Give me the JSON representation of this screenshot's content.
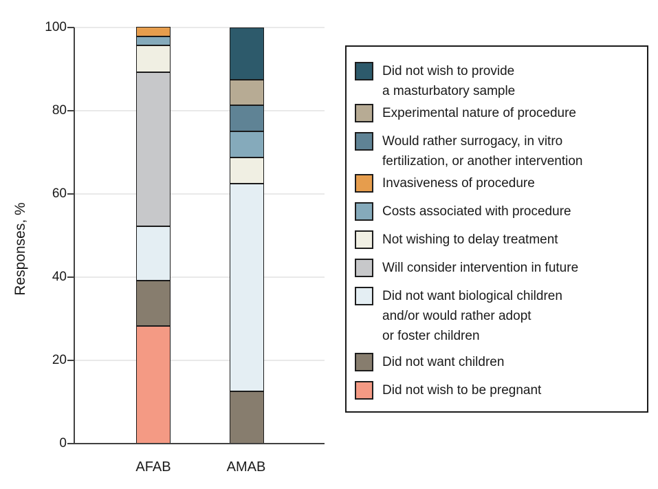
{
  "figure": {
    "background": "#ffffff",
    "axis_color": "#404040",
    "gridline_color": "#e9e9e9",
    "segment_border_color": "#1a1a1a"
  },
  "y_axis": {
    "label": "Responses, %",
    "ticks": [
      0,
      20,
      40,
      60,
      80,
      100
    ],
    "min": 0,
    "max": 100
  },
  "x_axis": {
    "categories": [
      "AFAB",
      "AMAB"
    ]
  },
  "chart_data": {
    "type": "bar",
    "stacked": true,
    "categories": [
      "AFAB",
      "AMAB"
    ],
    "series": [
      {
        "key": "pregnant",
        "name": "Did not wish to be pregnant",
        "color": "#F49A84",
        "values": [
          28.3,
          0
        ]
      },
      {
        "key": "no-children",
        "name": "Did not want children",
        "color": "#877D6E",
        "values": [
          10.9,
          12.5
        ]
      },
      {
        "key": "no-biological-children",
        "name": "Did not want biological children and/or would rather adopt or foster children",
        "color": "#E4EEF3",
        "values": [
          13.0,
          50.0
        ]
      },
      {
        "key": "future-intervention",
        "name": "Will consider intervention in future",
        "color": "#C7C8CA",
        "values": [
          37.0,
          0
        ]
      },
      {
        "key": "delay-treatment",
        "name": "Not wishing to delay treatment",
        "color": "#F0EFE3",
        "values": [
          6.5,
          6.25
        ]
      },
      {
        "key": "costs",
        "name": "Costs associated with procedure",
        "color": "#85AABB",
        "values": [
          2.2,
          6.25
        ]
      },
      {
        "key": "invasiveness",
        "name": "Invasiveness of procedure",
        "color": "#E69D4D",
        "values": [
          2.2,
          0
        ]
      },
      {
        "key": "surrogacy",
        "name": "Would rather surrogacy, in vitro fertilization, or another intervention",
        "color": "#5F8395",
        "values": [
          0,
          6.25
        ]
      },
      {
        "key": "experimental",
        "name": "Experimental nature of procedure",
        "color": "#B7AB94",
        "values": [
          0,
          6.25
        ]
      },
      {
        "key": "masturbatory-sample",
        "name": "Did not wish to provide a masturbatory sample",
        "color": "#2D5A6B",
        "values": [
          0,
          12.5
        ]
      }
    ],
    "title": "",
    "xlabel": "",
    "ylabel": "Responses, %",
    "ylim": [
      0,
      100
    ],
    "grid": true,
    "legend_position": "right"
  },
  "legend": {
    "items": [
      {
        "key": "masturbatory-sample",
        "color": "#2D5A6B",
        "lines": [
          "Did not wish to provide",
          "a masturbatory sample"
        ]
      },
      {
        "key": "experimental",
        "color": "#B7AB94",
        "lines": [
          "Experimental nature of procedure"
        ]
      },
      {
        "key": "surrogacy",
        "color": "#5F8395",
        "lines": [
          "Would rather surrogacy, in vitro",
          "fertilization, or another intervention"
        ]
      },
      {
        "key": "invasiveness",
        "color": "#E69D4D",
        "lines": [
          "Invasiveness of procedure"
        ]
      },
      {
        "key": "costs",
        "color": "#85AABB",
        "lines": [
          "Costs associated with procedure"
        ]
      },
      {
        "key": "delay-treatment",
        "color": "#F0EFE3",
        "lines": [
          "Not wishing to delay treatment"
        ]
      },
      {
        "key": "future-intervention",
        "color": "#C7C8CA",
        "lines": [
          "Will consider intervention in future"
        ]
      },
      {
        "key": "no-biological-children",
        "color": "#E4EEF3",
        "lines": [
          "Did not want biological children",
          "and/or would rather adopt",
          "or foster children"
        ]
      },
      {
        "key": "no-children",
        "color": "#877D6E",
        "lines": [
          "Did not want children"
        ]
      },
      {
        "key": "pregnant",
        "color": "#F49A84",
        "lines": [
          "Did not wish to be pregnant"
        ]
      }
    ]
  }
}
